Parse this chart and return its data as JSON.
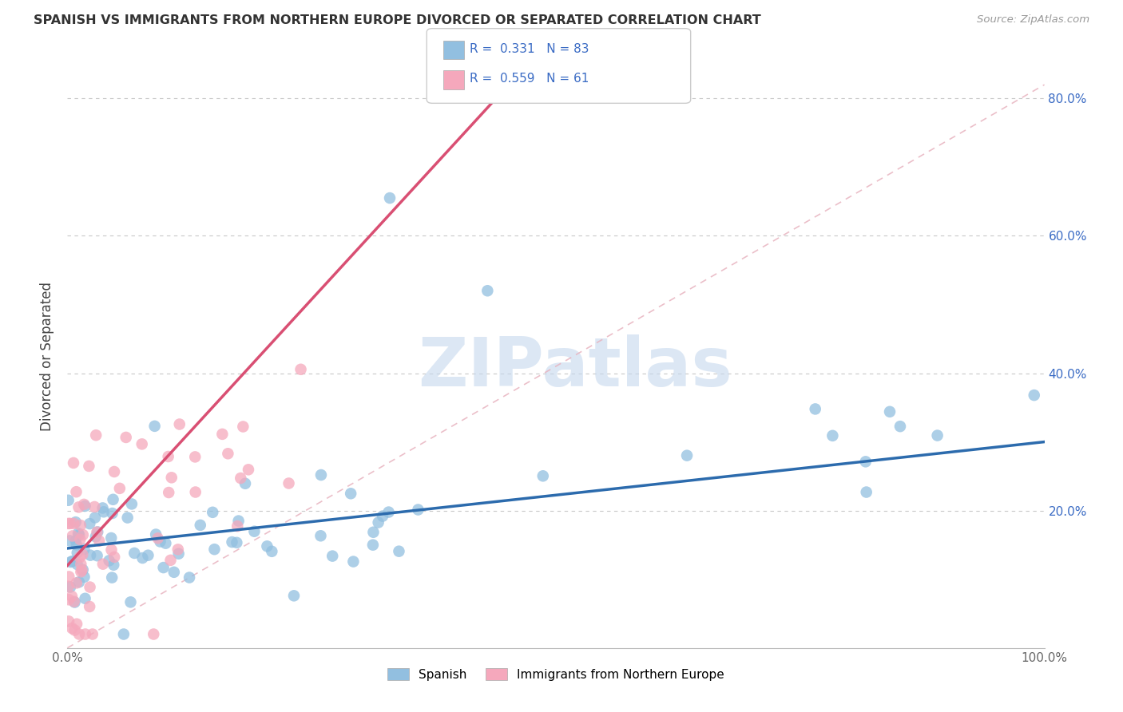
{
  "title": "SPANISH VS IMMIGRANTS FROM NORTHERN EUROPE DIVORCED OR SEPARATED CORRELATION CHART",
  "source": "Source: ZipAtlas.com",
  "ylabel": "Divorced or Separated",
  "xlim": [
    0,
    1.0
  ],
  "ylim": [
    0,
    0.85
  ],
  "xticks": [
    0.0,
    0.2,
    0.4,
    0.6,
    0.8,
    1.0
  ],
  "yticks": [
    0.0,
    0.2,
    0.4,
    0.6,
    0.8
  ],
  "right_ytick_labels": [
    "",
    "20.0%",
    "40.0%",
    "60.0%",
    "80.0%"
  ],
  "left_ytick_labels": [
    "",
    "",
    "",
    "",
    ""
  ],
  "xtick_labels": [
    "0.0%",
    "",
    "",
    "",
    "",
    "100.0%"
  ],
  "R_spanish": 0.331,
  "N_spanish": 83,
  "R_immigrants": 0.559,
  "N_immigrants": 61,
  "blue_color": "#92BFE0",
  "pink_color": "#F5A8BC",
  "blue_line_color": "#2C6BAD",
  "pink_line_color": "#D94F73",
  "ref_line_color": "#E8A0AE",
  "legend_text_color": "#3A6BC4",
  "background_color": "#FFFFFF",
  "grid_color": "#C8C8C8",
  "watermark": "ZIPatlas",
  "watermark_color": "#C5D8EE",
  "spanish_seed": 42,
  "immigrants_seed": 7
}
